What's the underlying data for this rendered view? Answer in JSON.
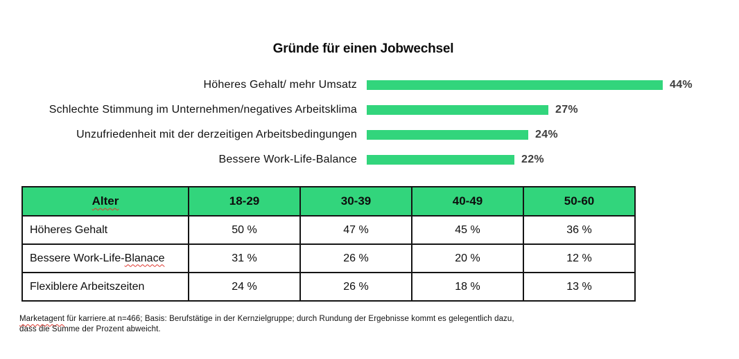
{
  "colors": {
    "accent_green": "#32d57c",
    "bar_value_text": "#3e3e3e",
    "spellcheck_red": "#e0372e",
    "border_black": "#141414"
  },
  "header": {
    "title": "Gründe für einen Jobwechsel"
  },
  "bar_chart": {
    "items": [
      {
        "label": "Höheres Gehalt/ mehr Umsatz",
        "value": 44,
        "display": "44%"
      },
      {
        "label": "Schlechte Stimmung im Unternehmen/negatives Arbeitsklima",
        "value": 27,
        "display": "27%"
      },
      {
        "label": "Unzufriedenheit mit der derzeitigen Arbeitsbedingungen",
        "value": 24,
        "display": "24%"
      },
      {
        "label": "Bessere Work-Life-Balance",
        "value": 22,
        "display": "22%"
      }
    ]
  },
  "table": {
    "columns": [
      "Alter",
      "18-29",
      "30-39",
      "40-49",
      "50-60"
    ],
    "rows": [
      {
        "label": "Höheres Gehalt",
        "values": [
          "50 %",
          "47 %",
          "45 %",
          "36 %"
        ]
      },
      {
        "label_prefix": "Bessere Work-Life-",
        "label_typo": "Blanace",
        "values": [
          "31 %",
          "26 %",
          "20 %",
          "12 %"
        ]
      },
      {
        "label": "Flexiblere Arbeitszeiten",
        "values": [
          "24 %",
          "26 %",
          "18 %",
          "13 %"
        ]
      }
    ]
  },
  "footnote": {
    "marked_word": "Marketagent",
    "line1_rest": " für karriere.at n=466; Basis: Berufstätige in der Kernzielgruppe; durch Rundung der Ergebnisse kommt es gelegentlich dazu,",
    "line2": "dass die Summe der Prozent abweicht."
  },
  "chart_data": [
    {
      "type": "bar",
      "orientation": "horizontal",
      "title": "Gründe für einen Jobwechsel",
      "categories": [
        "Höheres Gehalt/ mehr Umsatz",
        "Schlechte Stimmung im Unternehmen/negatives Arbeitsklima",
        "Unzufriedenheit mit der derzeitigen Arbeitsbedingungen",
        "Bessere Work-Life-Balance"
      ],
      "values": [
        44,
        27,
        24,
        22
      ],
      "unit": "%",
      "data_labels": [
        "44%",
        "27%",
        "24%",
        "22%"
      ],
      "bar_color": "#32d57c",
      "xlim": [
        0,
        46
      ],
      "grid": false,
      "legend": false
    },
    {
      "type": "table",
      "title_column": "Alter",
      "categories": [
        "18-29",
        "30-39",
        "40-49",
        "50-60"
      ],
      "series": [
        {
          "name": "Höheres Gehalt",
          "values": [
            50,
            47,
            45,
            36
          ]
        },
        {
          "name": "Bessere Work-Life-Blanace",
          "values": [
            31,
            26,
            20,
            12
          ]
        },
        {
          "name": "Flexiblere Arbeitszeiten",
          "values": [
            24,
            26,
            18,
            13
          ]
        }
      ],
      "unit": "%",
      "header_color": "#32d57c"
    }
  ]
}
